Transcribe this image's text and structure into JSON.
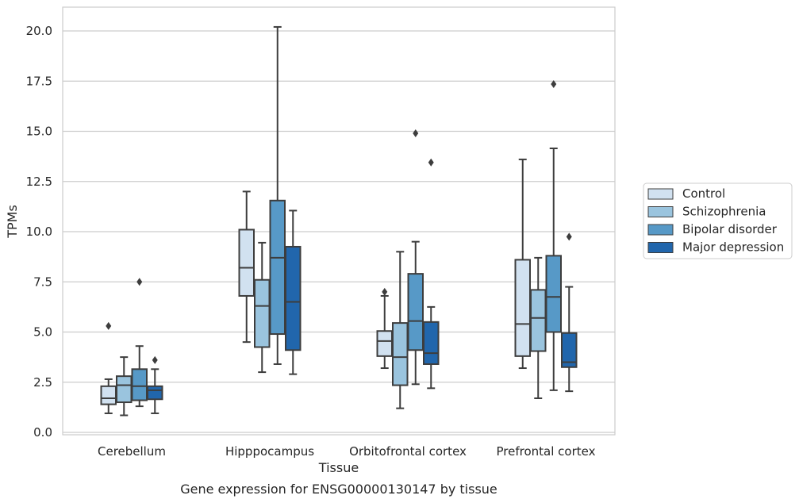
{
  "chart_data": {
    "type": "box",
    "title": "",
    "caption": "Gene expression for ENSG00000130147 by tissue",
    "xlabel": "Tissue",
    "ylabel": "TPMs",
    "ylim": [
      0,
      21.2
    ],
    "yticks": [
      0.0,
      2.5,
      5.0,
      7.5,
      10.0,
      12.5,
      15.0,
      17.5,
      20.0
    ],
    "ytick_labels": [
      "0.0",
      "2.5",
      "5.0",
      "7.5",
      "10.0",
      "12.5",
      "15.0",
      "17.5",
      "20.0"
    ],
    "grid": "horizontal",
    "legend_position": "right",
    "categories": [
      "Cerebellum",
      "Hipppocampus",
      "Orbitofrontal cortex",
      "Prefrontal cortex"
    ],
    "series": [
      {
        "name": "Control",
        "color": "#d1e1f0",
        "boxes": [
          {
            "whisker_low": 0.95,
            "q1": 1.4,
            "median": 1.7,
            "q3": 2.3,
            "whisker_high": 2.65,
            "outliers": [
              5.3
            ]
          },
          {
            "whisker_low": 4.5,
            "q1": 6.8,
            "median": 8.2,
            "q3": 10.1,
            "whisker_high": 12.0,
            "outliers": []
          },
          {
            "whisker_low": 3.2,
            "q1": 3.8,
            "median": 4.55,
            "q3": 5.05,
            "whisker_high": 6.8,
            "outliers": [
              7.0
            ]
          },
          {
            "whisker_low": 3.2,
            "q1": 3.8,
            "median": 5.4,
            "q3": 8.6,
            "whisker_high": 13.6,
            "outliers": []
          }
        ]
      },
      {
        "name": "Schizophrenia",
        "color": "#9ac4de",
        "boxes": [
          {
            "whisker_low": 0.85,
            "q1": 1.5,
            "median": 2.35,
            "q3": 2.8,
            "whisker_high": 3.75,
            "outliers": []
          },
          {
            "whisker_low": 3.0,
            "q1": 4.25,
            "median": 6.3,
            "q3": 7.6,
            "whisker_high": 9.45,
            "outliers": []
          },
          {
            "whisker_low": 1.2,
            "q1": 2.35,
            "median": 3.75,
            "q3": 5.45,
            "whisker_high": 9.0,
            "outliers": []
          },
          {
            "whisker_low": 1.7,
            "q1": 4.05,
            "median": 5.7,
            "q3": 7.1,
            "whisker_high": 8.7,
            "outliers": []
          }
        ]
      },
      {
        "name": "Bipolar disorder",
        "color": "#5799c7",
        "boxes": [
          {
            "whisker_low": 1.3,
            "q1": 1.6,
            "median": 2.3,
            "q3": 3.15,
            "whisker_high": 4.3,
            "outliers": [
              7.5
            ]
          },
          {
            "whisker_low": 3.4,
            "q1": 4.9,
            "median": 8.7,
            "q3": 11.55,
            "whisker_high": 20.2,
            "outliers": []
          },
          {
            "whisker_low": 2.4,
            "q1": 4.1,
            "median": 5.55,
            "q3": 7.9,
            "whisker_high": 9.5,
            "outliers": [
              14.9
            ]
          },
          {
            "whisker_low": 2.1,
            "q1": 5.0,
            "median": 6.75,
            "q3": 8.8,
            "whisker_high": 14.15,
            "outliers": [
              17.35
            ]
          }
        ]
      },
      {
        "name": "Major depression",
        "color": "#2166ac",
        "boxes": [
          {
            "whisker_low": 0.95,
            "q1": 1.65,
            "median": 2.1,
            "q3": 2.3,
            "whisker_high": 3.15,
            "outliers": [
              3.6
            ]
          },
          {
            "whisker_low": 2.9,
            "q1": 4.1,
            "median": 6.5,
            "q3": 9.25,
            "whisker_high": 11.05,
            "outliers": []
          },
          {
            "whisker_low": 2.2,
            "q1": 3.4,
            "median": 3.95,
            "q3": 5.5,
            "whisker_high": 6.25,
            "outliers": [
              13.45
            ]
          },
          {
            "whisker_low": 2.05,
            "q1": 3.25,
            "median": 3.5,
            "q3": 4.95,
            "whisker_high": 7.25,
            "outliers": [
              9.75
            ]
          }
        ]
      }
    ]
  }
}
